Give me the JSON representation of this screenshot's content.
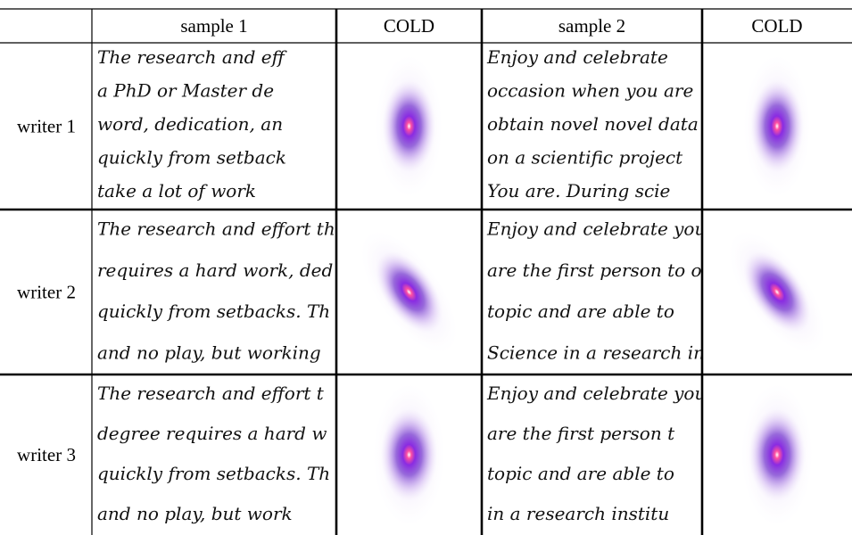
{
  "table": {
    "header": [
      "",
      "sample 1",
      "COLD",
      "sample 2",
      "COLD"
    ],
    "rows": [
      {
        "label": "writer 1",
        "sample1": [
          "The research and eff",
          "a PhD or Master de",
          "word, dedication, an",
          "quickly from setback",
          "take a lot of work"
        ],
        "sample2": [
          "Enjoy and celebrate",
          "occasion when you are",
          "obtain novel novel data",
          "on a scientific project",
          "You are. During scie"
        ]
      },
      {
        "label": "writer 2",
        "sample1": [
          "The research and effort that",
          "requires a hard work, ded",
          "quickly from setbacks. Th",
          "and no play, but working"
        ],
        "sample2": [
          "Enjoy and celebrate your",
          "are the first person to o",
          "topic and are able to",
          "Science in a research in"
        ]
      },
      {
        "label": "writer 3",
        "sample1": [
          "The research and effort t",
          "degree requires a hard w",
          "quickly from setbacks. Th",
          "and no play, but work"
        ],
        "sample2": [
          "Enjoy and celebrate you",
          "are the first person t",
          "topic and are able to",
          "in a research institu"
        ]
      }
    ]
  }
}
